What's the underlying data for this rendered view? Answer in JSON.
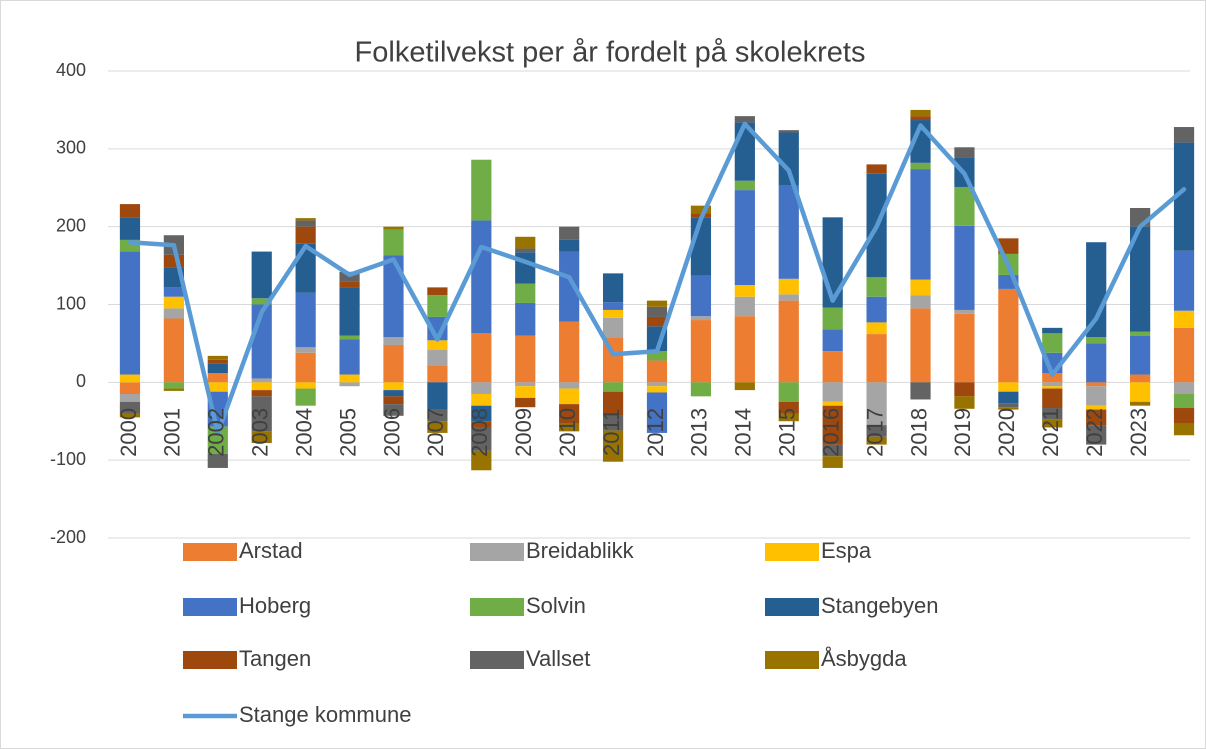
{
  "chart_data": {
    "type": "bar",
    "stacked": true,
    "title": "Folketilvekst per år fordelt på skolekrets",
    "categories": [
      "2000",
      "2001",
      "2002",
      "2003",
      "2004",
      "2005",
      "2006",
      "2007",
      "2008",
      "2009",
      "2010",
      "2011",
      "2012",
      "2013",
      "2014",
      "2015",
      "2016",
      "2017",
      "2018",
      "2019",
      "2020",
      "2021",
      "2022",
      "2023",
      null
    ],
    "series": [
      {
        "name": "Arstad",
        "color": "#ed7d31",
        "values": [
          -15,
          82,
          12,
          0,
          38,
          0,
          48,
          22,
          63,
          60,
          78,
          58,
          28,
          80,
          85,
          105,
          40,
          62,
          95,
          88,
          120,
          12,
          -5,
          10,
          70
        ]
      },
      {
        "name": "Breidablikk",
        "color": "#a5a5a5",
        "values": [
          -10,
          13,
          0,
          5,
          7,
          -5,
          10,
          20,
          -15,
          -5,
          -8,
          25,
          -5,
          5,
          25,
          8,
          -25,
          -55,
          17,
          5,
          0,
          -5,
          -25,
          0,
          -15
        ]
      },
      {
        "name": "Espa",
        "color": "#ffc000",
        "values": [
          10,
          15,
          -12,
          -10,
          -8,
          10,
          -10,
          12,
          -15,
          -15,
          -20,
          10,
          -8,
          0,
          15,
          20,
          -5,
          15,
          20,
          0,
          -12,
          -3,
          -5,
          -25,
          22
        ]
      },
      {
        "name": "Hoberg",
        "color": "#4472c4",
        "values": [
          158,
          12,
          -45,
          95,
          70,
          45,
          105,
          30,
          145,
          42,
          90,
          10,
          -52,
          52,
          122,
          120,
          28,
          33,
          142,
          108,
          18,
          26,
          50,
          50,
          77
        ]
      },
      {
        "name": "Solvin",
        "color": "#70ad47",
        "values": [
          15,
          -8,
          -35,
          8,
          -22,
          5,
          33,
          28,
          78,
          25,
          0,
          -12,
          12,
          -18,
          12,
          -25,
          28,
          25,
          8,
          50,
          27,
          25,
          8,
          5,
          -18
        ]
      },
      {
        "name": "Stangebyen",
        "color": "#255e91",
        "values": [
          29,
          25,
          12,
          60,
          63,
          62,
          -8,
          -35,
          -20,
          40,
          15,
          37,
          32,
          75,
          75,
          68,
          116,
          133,
          55,
          38,
          -15,
          7,
          122,
          135,
          139
        ]
      },
      {
        "name": "Tangen",
        "color": "#9e480e",
        "values": [
          17,
          17,
          5,
          -8,
          22,
          8,
          -10,
          10,
          -8,
          -12,
          -25,
          -30,
          12,
          5,
          0,
          -15,
          -50,
          12,
          5,
          -18,
          20,
          -25,
          -20,
          0,
          -20
        ]
      },
      {
        "name": "Vallset",
        "color": "#636363",
        "values": [
          -15,
          25,
          -18,
          -45,
          8,
          12,
          -15,
          -15,
          -30,
          5,
          17,
          -20,
          13,
          0,
          8,
          3,
          -15,
          -15,
          -22,
          13,
          -5,
          -15,
          -25,
          24,
          20
        ]
      },
      {
        "name": "Åsbygda",
        "color": "#997300",
        "values": [
          -5,
          -3,
          5,
          -15,
          3,
          0,
          4,
          -15,
          -25,
          15,
          -10,
          -40,
          8,
          10,
          -10,
          -10,
          -15,
          -10,
          8,
          -16,
          -3,
          -10,
          0,
          -5,
          -15
        ]
      }
    ],
    "line": {
      "name": "Stange kommune",
      "color": "#5b9bd5",
      "values": [
        180,
        176,
        -65,
        90,
        175,
        138,
        158,
        55,
        174,
        155,
        135,
        36,
        40,
        210,
        332,
        272,
        105,
        200,
        330,
        268,
        150,
        10,
        82,
        200,
        248
      ]
    },
    "ylim": [
      -200,
      400
    ],
    "yticks": [
      -200,
      -100,
      0,
      100,
      200,
      300,
      400
    ],
    "grid": true,
    "legend": "bottom"
  }
}
